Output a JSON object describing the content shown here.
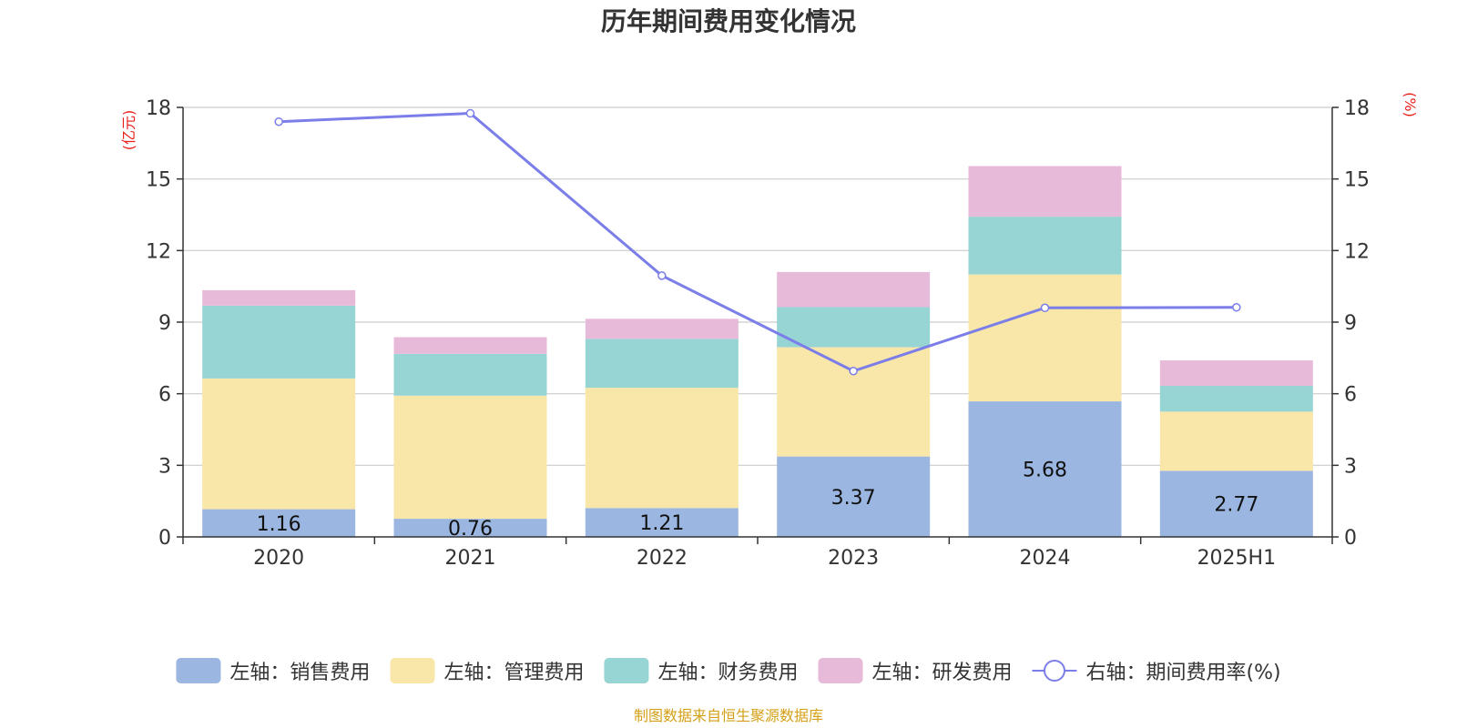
{
  "chart_data": {
    "type": "bar",
    "title": "历年期间费用变化情况",
    "categories": [
      "2020",
      "2021",
      "2022",
      "2023",
      "2024",
      "2025H1"
    ],
    "left_axis": {
      "unit": "(亿元)",
      "range": [
        0,
        18
      ],
      "ticks": [
        "0",
        "3",
        "6",
        "9",
        "12",
        "15",
        "18"
      ]
    },
    "right_axis": {
      "unit": "(%)",
      "range": [
        0,
        18
      ],
      "ticks": [
        "0",
        "3",
        "6",
        "9",
        "12",
        "15",
        "18"
      ]
    },
    "stacked": true,
    "series": [
      {
        "name": "左轴：销售费用",
        "axis": "left",
        "type": "bar",
        "color": "#9bb7e1",
        "values": [
          1.16,
          0.76,
          1.21,
          3.37,
          5.68,
          2.77
        ],
        "labels": [
          "1.16",
          "0.76",
          "1.21",
          "3.37",
          "5.68",
          "2.77"
        ]
      },
      {
        "name": "左轴：管理费用",
        "axis": "left",
        "type": "bar",
        "color": "#f8e7a8",
        "values": [
          5.48,
          5.16,
          5.04,
          4.58,
          5.32,
          2.48
        ]
      },
      {
        "name": "左轴：财务费用",
        "axis": "left",
        "type": "bar",
        "color": "#97d4d4",
        "values": [
          3.05,
          1.75,
          2.05,
          1.68,
          2.42,
          1.08
        ]
      },
      {
        "name": "左轴：研发费用",
        "axis": "left",
        "type": "bar",
        "color": "#e8bad9",
        "values": [
          0.65,
          0.7,
          0.84,
          1.47,
          2.12,
          1.07
        ]
      },
      {
        "name": "右轴：期间费用率(%)",
        "axis": "right",
        "type": "line",
        "color": "#7b7ee8",
        "values": [
          17.4,
          17.75,
          10.95,
          6.95,
          9.6,
          9.62
        ]
      }
    ],
    "grid": true,
    "legend_position": "bottom",
    "source": "制图数据来自恒生聚源数据库",
    "unit_color": "#e8201c",
    "source_color": "#d4a017"
  }
}
